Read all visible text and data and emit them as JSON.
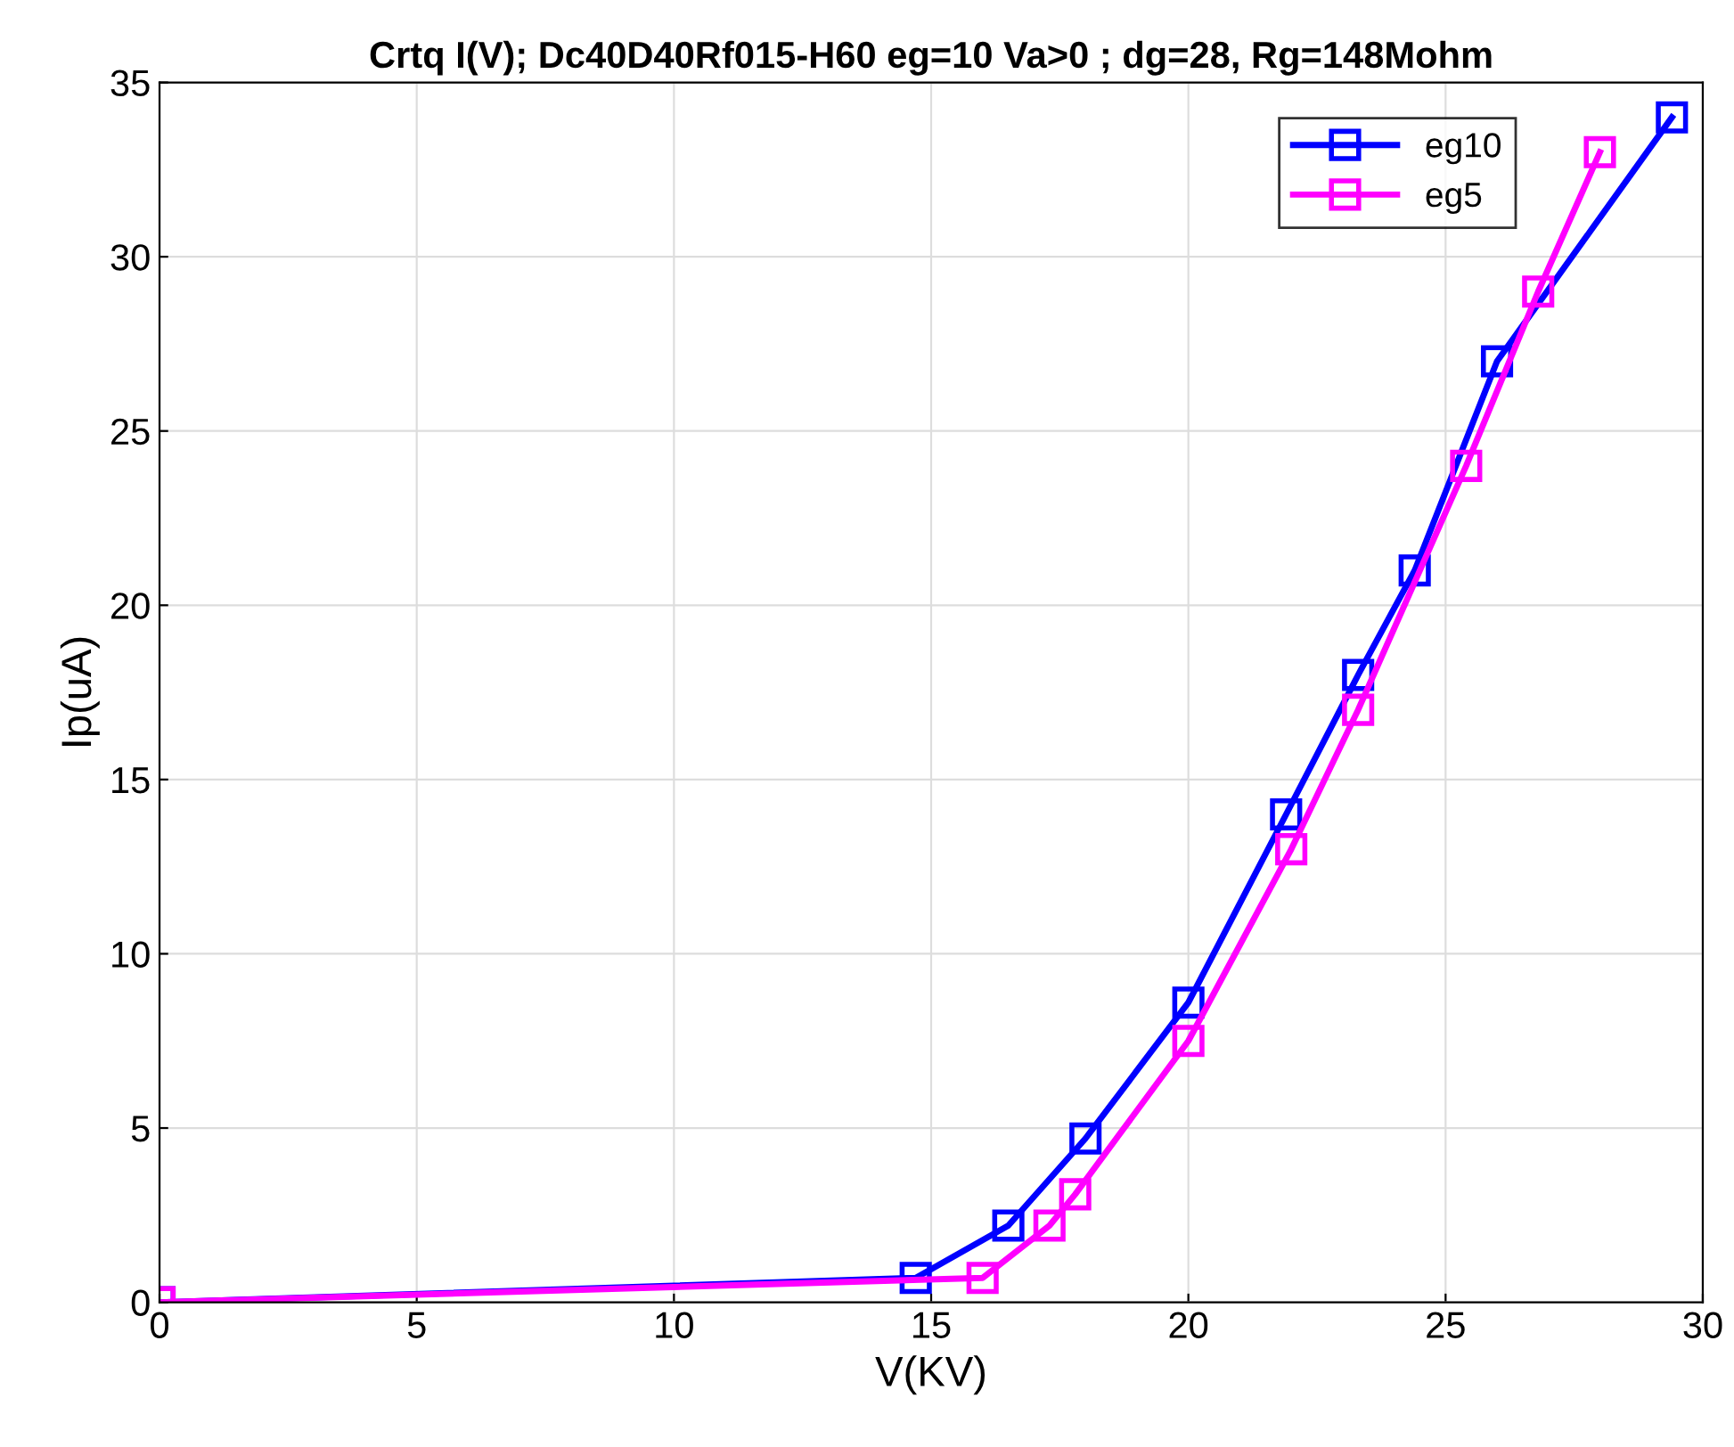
{
  "chart_data": {
    "type": "line",
    "title": "Crtq I(V); Dc40D40Rf015-H60 eg=10 Va>0 ; dg=28, Rg=148Mohm",
    "xlabel": "V(KV)",
    "ylabel": "Ip(uA)",
    "series": [
      {
        "name": "eg10",
        "color": "#0000ff",
        "x": [
          0,
          14.7,
          16.5,
          18.0,
          20.0,
          21.9,
          23.3,
          24.4,
          26.0,
          29.4
        ],
        "values": [
          0,
          0.7,
          2.2,
          4.7,
          8.6,
          14,
          18,
          21,
          27,
          34
        ]
      },
      {
        "name": "eg5",
        "color": "#ff00ff",
        "x": [
          0,
          16.0,
          17.3,
          17.8,
          20.0,
          22.0,
          23.3,
          25.4,
          26.8,
          28.0
        ],
        "values": [
          0,
          0.7,
          2.2,
          3.1,
          7.5,
          13,
          17,
          24,
          29,
          33
        ]
      }
    ],
    "xlim": [
      0,
      30
    ],
    "xticks": [
      0,
      5,
      10,
      15,
      20,
      25,
      30
    ],
    "ylim": [
      0,
      35
    ],
    "yticks": [
      0,
      5,
      10,
      15,
      20,
      25,
      30,
      35
    ],
    "grid": true,
    "legend": "top right",
    "marker": "square",
    "line_style": "solid"
  }
}
